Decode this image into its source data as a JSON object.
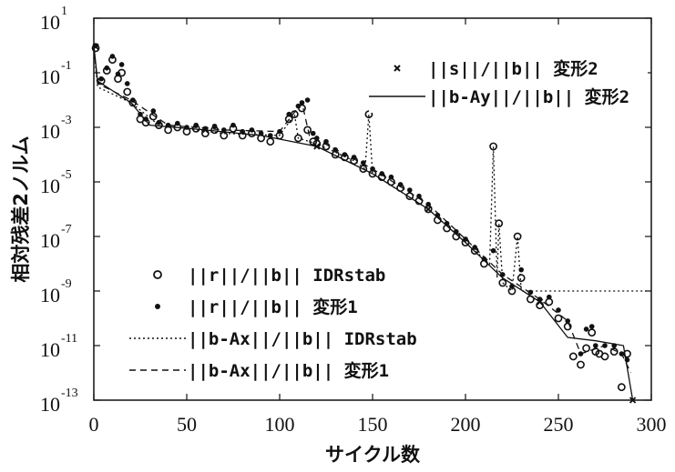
{
  "chart_data": {
    "type": "scatter",
    "title": "",
    "xlabel": "サイクル数",
    "ylabel": "相対残差2ノルム",
    "xlim": [
      0,
      300
    ],
    "ylim": [
      1e-13,
      10
    ],
    "yscale": "log",
    "grid": false,
    "xticks": [
      {
        "value": 0,
        "label": "0"
      },
      {
        "value": 50,
        "label": "50"
      },
      {
        "value": 100,
        "label": "100"
      },
      {
        "value": 150,
        "label": "150"
      },
      {
        "value": 200,
        "label": "200"
      },
      {
        "value": 250,
        "label": "250"
      },
      {
        "value": 300,
        "label": "300"
      }
    ],
    "yticks": [
      {
        "value": 10.0,
        "base": "10",
        "exp": "1"
      },
      {
        "value": 0.1,
        "base": "10",
        "exp": "-1"
      },
      {
        "value": 0.001,
        "base": "10",
        "exp": "-3"
      },
      {
        "value": 1e-05,
        "base": "10",
        "exp": "-5"
      },
      {
        "value": 1e-07,
        "base": "10",
        "exp": "-7"
      },
      {
        "value": 1e-09,
        "base": "10",
        "exp": "-9"
      },
      {
        "value": 1e-11,
        "base": "10",
        "exp": "-11"
      },
      {
        "value": 1e-13,
        "base": "10",
        "exp": "-13"
      }
    ],
    "legend_top": [
      {
        "label": "||s||/||b|| 変形2",
        "marker": "x"
      },
      {
        "label": "||b-Ay||/||b|| 変形2",
        "line": "solid"
      }
    ],
    "legend_bottom": [
      {
        "label": "||r||/||b|| IDRstab",
        "marker": "o"
      },
      {
        "label": "||r||/||b|| 変形1",
        "marker": "dot"
      },
      {
        "label": "||b-Ax||/||b|| IDRstab",
        "line": "dotted"
      },
      {
        "label": "||b-Ax||/||b|| 変形1",
        "line": "dashed"
      }
    ],
    "series": [
      {
        "name": "||r||/||b|| IDRstab",
        "marker": "o",
        "points": [
          [
            1,
            0.8
          ],
          [
            4,
            0.05
          ],
          [
            7,
            0.12
          ],
          [
            10,
            0.3
          ],
          [
            13,
            0.06
          ],
          [
            15,
            0.1
          ],
          [
            18,
            0.02
          ],
          [
            21,
            0.008
          ],
          [
            25,
            0.002
          ],
          [
            28,
            0.0015
          ],
          [
            32,
            0.0025
          ],
          [
            35,
            0.0012
          ],
          [
            40,
            0.0008
          ],
          [
            45,
            0.001
          ],
          [
            50,
            0.0007
          ],
          [
            55,
            0.0009
          ],
          [
            60,
            0.0006
          ],
          [
            65,
            0.0008
          ],
          [
            70,
            0.0005
          ],
          [
            75,
            0.0009
          ],
          [
            80,
            0.0005
          ],
          [
            85,
            0.0006
          ],
          [
            90,
            0.0004
          ],
          [
            95,
            0.0003
          ],
          [
            100,
            0.0005
          ],
          [
            105,
            0.002
          ],
          [
            108,
            0.003
          ],
          [
            110,
            0.0004
          ],
          [
            112,
            0.005
          ],
          [
            115,
            0.0008
          ],
          [
            118,
            0.0003
          ],
          [
            120,
            0.00025
          ],
          [
            125,
            0.0002
          ],
          [
            130,
            0.0001
          ],
          [
            135,
            8e-05
          ],
          [
            140,
            6e-05
          ],
          [
            145,
            3e-05
          ],
          [
            148,
            0.003
          ],
          [
            150,
            2e-05
          ],
          [
            155,
            1.5e-05
          ],
          [
            160,
            1e-05
          ],
          [
            165,
            6e-06
          ],
          [
            170,
            3e-06
          ],
          [
            175,
            2e-06
          ],
          [
            180,
            1e-06
          ],
          [
            185,
            4e-07
          ],
          [
            190,
            2e-07
          ],
          [
            195,
            1e-07
          ],
          [
            200,
            6e-08
          ],
          [
            205,
            3e-08
          ],
          [
            210,
            1e-08
          ],
          [
            215,
            0.0002
          ],
          [
            218,
            3e-07
          ],
          [
            220,
            2e-09
          ],
          [
            225,
            1e-09
          ],
          [
            228,
            1e-07
          ],
          [
            230,
            3e-09
          ],
          [
            235,
            5e-10
          ],
          [
            240,
            3e-10
          ],
          [
            245,
            4e-10
          ],
          [
            250,
            1e-10
          ],
          [
            255,
            5e-11
          ],
          [
            258,
            4e-12
          ],
          [
            262,
            2e-12
          ],
          [
            265,
            8e-12
          ],
          [
            268,
            3e-11
          ],
          [
            270,
            6e-12
          ],
          [
            272,
            5e-12
          ],
          [
            275,
            4e-12
          ],
          [
            280,
            6e-12
          ],
          [
            284,
            3e-13
          ],
          [
            287,
            5e-12
          ]
        ]
      },
      {
        "name": "||r||/||b|| 変形1",
        "marker": "dot",
        "points": [
          [
            1,
            1
          ],
          [
            4,
            0.06
          ],
          [
            7,
            0.15
          ],
          [
            10,
            0.4
          ],
          [
            13,
            0.09
          ],
          [
            15,
            0.2
          ],
          [
            18,
            0.04
          ],
          [
            21,
            0.01
          ],
          [
            25,
            0.003
          ],
          [
            28,
            0.002
          ],
          [
            32,
            0.004
          ],
          [
            35,
            0.0015
          ],
          [
            40,
            0.0012
          ],
          [
            45,
            0.0014
          ],
          [
            50,
            0.001
          ],
          [
            55,
            0.0012
          ],
          [
            60,
            0.0009
          ],
          [
            65,
            0.0011
          ],
          [
            70,
            0.0008
          ],
          [
            75,
            0.0012
          ],
          [
            80,
            0.0007
          ],
          [
            85,
            0.0008
          ],
          [
            90,
            0.0006
          ],
          [
            95,
            0.0005
          ],
          [
            100,
            0.0007
          ],
          [
            105,
            0.003
          ],
          [
            110,
            0.006
          ],
          [
            112,
            0.008
          ],
          [
            115,
            0.01
          ],
          [
            118,
            0.0006
          ],
          [
            120,
            0.0004
          ],
          [
            125,
            0.0003
          ],
          [
            130,
            0.00015
          ],
          [
            135,
            0.0001
          ],
          [
            140,
            8e-05
          ],
          [
            145,
            5e-05
          ],
          [
            150,
            3e-05
          ],
          [
            155,
            2e-05
          ],
          [
            160,
            1.5e-05
          ],
          [
            165,
            8e-06
          ],
          [
            170,
            5e-06
          ],
          [
            175,
            3e-06
          ],
          [
            180,
            1.5e-06
          ],
          [
            185,
            6e-07
          ],
          [
            190,
            3e-07
          ],
          [
            195,
            1.5e-07
          ],
          [
            200,
            8e-08
          ],
          [
            205,
            4e-08
          ],
          [
            210,
            1.5e-08
          ],
          [
            215,
            3e-08
          ],
          [
            220,
            4e-09
          ],
          [
            225,
            1.5e-09
          ],
          [
            230,
            6e-09
          ],
          [
            235,
            9e-10
          ],
          [
            240,
            5e-10
          ],
          [
            245,
            6e-10
          ],
          [
            250,
            2e-10
          ],
          [
            255,
            8e-11
          ],
          [
            262,
            5e-12
          ],
          [
            265,
            4e-11
          ],
          [
            268,
            5e-11
          ],
          [
            270,
            1e-11
          ],
          [
            275,
            1e-11
          ],
          [
            280,
            1e-11
          ],
          [
            284,
            5e-12
          ],
          [
            287,
            3e-12
          ]
        ]
      },
      {
        "name": "||s||/||b|| 変形2",
        "marker": "x",
        "points": [
          [
            1,
            0.9
          ],
          [
            60,
            0.0008
          ],
          [
            120,
            0.0002
          ],
          [
            180,
            1e-06
          ],
          [
            240,
            4e-10
          ],
          [
            290,
            1e-13
          ]
        ]
      },
      {
        "name": "||b-Ax||/||b|| IDRstab",
        "line": "dotted",
        "points": [
          [
            0,
            0.8
          ],
          [
            2,
            0.03
          ],
          [
            20,
            0.008
          ],
          [
            35,
            0.0012
          ],
          [
            70,
            0.0006
          ],
          [
            100,
            0.0005
          ],
          [
            108,
            0.003
          ],
          [
            110,
            0.0004
          ],
          [
            120,
            0.00025
          ],
          [
            140,
            6e-05
          ],
          [
            146,
            3e-05
          ],
          [
            148,
            0.003
          ],
          [
            150,
            2e-05
          ],
          [
            180,
            1e-06
          ],
          [
            200,
            6e-08
          ],
          [
            213,
            1e-08
          ],
          [
            215,
            0.0002
          ],
          [
            217,
            3e-09
          ],
          [
            218,
            3e-07
          ],
          [
            220,
            2e-09
          ],
          [
            225,
            1e-09
          ],
          [
            228,
            1e-07
          ],
          [
            230,
            1e-09
          ],
          [
            300,
            1e-09
          ]
        ]
      },
      {
        "name": "||b-Ax||/||b|| 変形1",
        "line": "dashed",
        "points": [
          [
            0,
            0.9
          ],
          [
            2,
            0.04
          ],
          [
            20,
            0.01
          ],
          [
            40,
            0.0012
          ],
          [
            70,
            0.0008
          ],
          [
            100,
            0.0007
          ],
          [
            112,
            0.008
          ],
          [
            116,
            0.0005
          ],
          [
            150,
            3e-05
          ],
          [
            180,
            1.5e-06
          ],
          [
            200,
            8e-08
          ],
          [
            220,
            4e-09
          ],
          [
            240,
            5e-10
          ],
          [
            255,
            8e-11
          ],
          [
            262,
            5e-12
          ],
          [
            275,
            1e-11
          ],
          [
            284,
            5e-12
          ],
          [
            289,
            1e-12
          ]
        ]
      },
      {
        "name": "||b-Ay||/||b|| 変形2",
        "line": "solid",
        "points": [
          [
            0,
            1
          ],
          [
            2,
            0.05
          ],
          [
            20,
            0.008
          ],
          [
            30,
            0.0012
          ],
          [
            60,
            0.0008
          ],
          [
            90,
            0.0005
          ],
          [
            120,
            0.0002
          ],
          [
            150,
            2e-05
          ],
          [
            180,
            1e-06
          ],
          [
            200,
            6e-08
          ],
          [
            220,
            3e-09
          ],
          [
            240,
            4e-10
          ],
          [
            255,
            2e-11
          ],
          [
            270,
            1.5e-11
          ],
          [
            285,
            1e-11
          ],
          [
            290,
            1e-13
          ]
        ]
      }
    ]
  }
}
